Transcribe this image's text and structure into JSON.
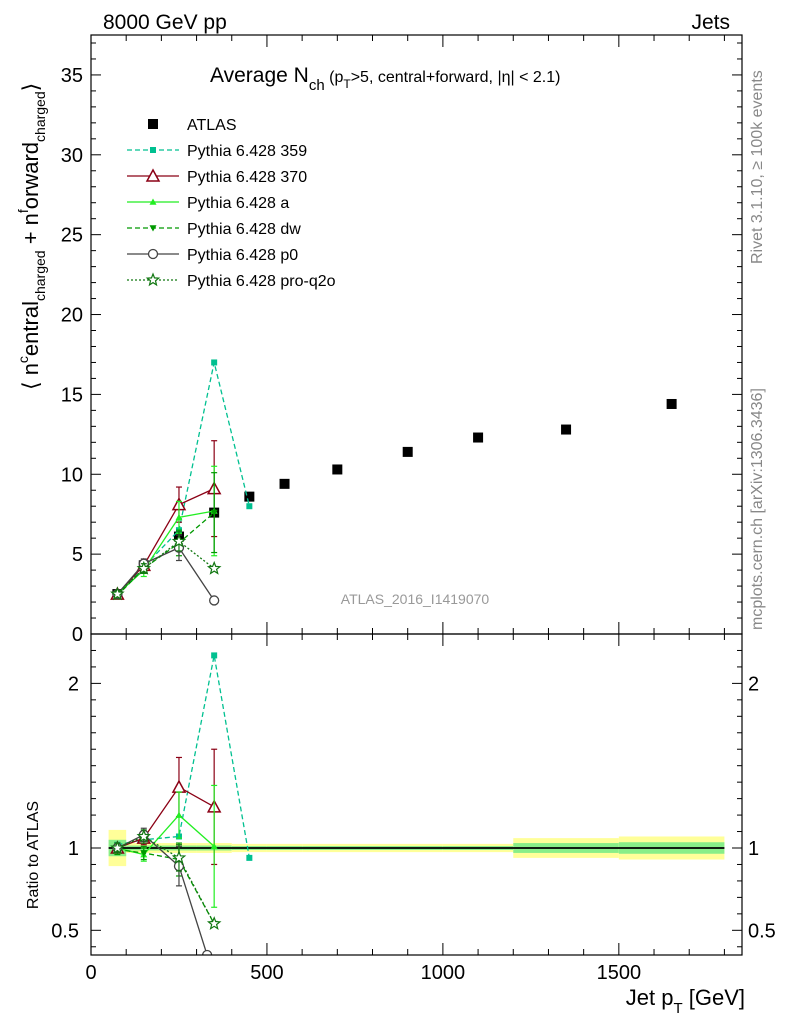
{
  "header": {
    "left": "8000 GeV pp",
    "right": "Jets",
    "right_vertical": "Rivet 3.1.10, ≥ 100k events",
    "source_vertical": "mcplots.cern.ch [arXiv:1306.3436]"
  },
  "plot_title": {
    "main": "Average N",
    "sub": "ch",
    "rest": " (p",
    "rest_sub": "T",
    "rest2": ">5, central+forward, |η| < 2.1)"
  },
  "watermark": "ATLAS_2016_I1419070",
  "upper_ylabel": "⟨ nᶜcentral_charged + nforward_charged ⟩",
  "upper_ylabel_parts": {
    "a": "⟨ n",
    "a_sup": "c",
    "b": "entral",
    "b_sub": "charged",
    "c": " + n",
    "c_sup": "f",
    "d": "orward",
    "d_sub": "charged",
    "e": "⟩"
  },
  "lower_ylabel": "Ratio to ATLAS",
  "xlabel": "Jet p",
  "xlabel_sub": "T",
  "xlabel_rest": " [GeV]",
  "chart_data": [
    {
      "type": "scatter",
      "panel": "main",
      "xlim": [
        0,
        1850
      ],
      "ylim": [
        0,
        37.5
      ],
      "x_ticks": [
        0,
        500,
        1000,
        1500
      ],
      "y_ticks": [
        0,
        5,
        10,
        15,
        20,
        25,
        30,
        35
      ],
      "y_tick_labels": [
        "0",
        "5",
        "10",
        "15",
        "20",
        "25",
        "30",
        "35"
      ],
      "legend_placement": "top-left",
      "series": [
        {
          "name": "ATLAS",
          "color": "#000000",
          "marker": "square",
          "line": "none",
          "x": [
            75,
            150,
            250,
            350,
            450,
            550,
            700,
            900,
            1100,
            1350,
            1650
          ],
          "y": [
            2.5,
            4.3,
            6.1,
            7.6,
            8.6,
            9.4,
            10.3,
            11.4,
            12.3,
            12.8,
            14.4
          ]
        },
        {
          "name": "Pythia 6.428 359",
          "color": "#00c090",
          "marker": "small-square",
          "line": "dashed",
          "x": [
            75,
            150,
            250,
            350,
            450
          ],
          "y": [
            2.5,
            4.2,
            6.5,
            17.0,
            8.0
          ]
        },
        {
          "name": "Pythia 6.428 370",
          "color": "#8b0015",
          "marker": "open-triangle",
          "line": "solid",
          "x": [
            75,
            150,
            250,
            350
          ],
          "y": [
            2.5,
            4.3,
            8.1,
            9.1
          ],
          "err": [
            0.2,
            0.3,
            1.1,
            3.0
          ]
        },
        {
          "name": "Pythia 6.428 a",
          "color": "#22ee22",
          "marker": "triangle",
          "line": "solid",
          "x": [
            75,
            150,
            250,
            350
          ],
          "y": [
            2.5,
            4.0,
            7.3,
            7.7
          ],
          "err": [
            0.2,
            0.4,
            1.0,
            2.8
          ]
        },
        {
          "name": "Pythia 6.428 dw",
          "color": "#009900",
          "marker": "triangle-down",
          "line": "dashed",
          "x": [
            75,
            150,
            250,
            350
          ],
          "y": [
            2.4,
            4.1,
            5.7,
            7.6
          ],
          "err": [
            0.2,
            0.3,
            0.8,
            2.5
          ]
        },
        {
          "name": "Pythia 6.428 p0",
          "color": "#444444",
          "marker": "open-circle",
          "line": "solid",
          "x": [
            75,
            150,
            250,
            350
          ],
          "y": [
            2.5,
            4.4,
            5.4,
            2.1
          ],
          "err": [
            0.2,
            0.3,
            0.8,
            0.0
          ]
        },
        {
          "name": "Pythia 6.428 pro-q2o",
          "color": "#117711",
          "marker": "star",
          "line": "dotted",
          "x": [
            75,
            150,
            250,
            350
          ],
          "y": [
            2.5,
            4.1,
            5.8,
            4.1
          ],
          "err": [
            0.2,
            0.3,
            0.6,
            0.0
          ]
        }
      ]
    },
    {
      "type": "scatter",
      "panel": "ratio",
      "xlim": [
        0,
        1850
      ],
      "ylim": [
        0.35,
        2.3
      ],
      "y_ticks": [
        0.5,
        1,
        2
      ],
      "y_tick_labels": [
        "0.5",
        "1",
        "2"
      ],
      "x_tick_labels": [
        "0",
        "500",
        "1000",
        "1500"
      ],
      "band_bins": [
        {
          "x0": 50,
          "x1": 100,
          "outer": 0.11,
          "inner": 0.05
        },
        {
          "x0": 100,
          "x1": 200,
          "outer": 0.03,
          "inner": 0.015
        },
        {
          "x0": 200,
          "x1": 300,
          "outer": 0.03,
          "inner": 0.015
        },
        {
          "x0": 300,
          "x1": 400,
          "outer": 0.03,
          "inner": 0.015
        },
        {
          "x0": 400,
          "x1": 500,
          "outer": 0.025,
          "inner": 0.012
        },
        {
          "x0": 500,
          "x1": 600,
          "outer": 0.025,
          "inner": 0.012
        },
        {
          "x0": 600,
          "x1": 800,
          "outer": 0.025,
          "inner": 0.012
        },
        {
          "x0": 800,
          "x1": 1000,
          "outer": 0.025,
          "inner": 0.012
        },
        {
          "x0": 1000,
          "x1": 1200,
          "outer": 0.025,
          "inner": 0.012
        },
        {
          "x0": 1200,
          "x1": 1500,
          "outer": 0.06,
          "inner": 0.03
        },
        {
          "x0": 1500,
          "x1": 1800,
          "outer": 0.07,
          "inner": 0.035
        }
      ],
      "series": [
        {
          "name": "Pythia 6.428 359",
          "x": [
            75,
            150,
            250,
            350,
            450
          ],
          "y": [
            1.02,
            1.05,
            1.07,
            2.17,
            0.94
          ]
        },
        {
          "name": "Pythia 6.428 370",
          "x": [
            75,
            150,
            250,
            350
          ],
          "y": [
            1.0,
            1.06,
            1.37,
            1.25
          ],
          "err": [
            0.03,
            0.04,
            0.18,
            0.35
          ]
        },
        {
          "name": "Pythia 6.428 a",
          "x": [
            75,
            150,
            250,
            350
          ],
          "y": [
            1.0,
            0.96,
            1.2,
            1.01
          ],
          "err": [
            0.03,
            0.04,
            0.14,
            0.37
          ]
        },
        {
          "name": "Pythia 6.428 dw",
          "x": [
            75,
            150,
            250,
            350
          ],
          "y": [
            0.99,
            0.97,
            0.93,
            0.54
          ],
          "err": [
            0.03,
            0.04,
            0.1,
            0.0
          ]
        },
        {
          "name": "Pythia 6.428 p0",
          "x": [
            75,
            150,
            250,
            330
          ],
          "y": [
            1.0,
            1.08,
            0.89,
            0.35
          ],
          "err": [
            0.03,
            0.04,
            0.12,
            0.0
          ]
        },
        {
          "name": "Pythia 6.428 pro-q2o",
          "x": [
            75,
            150,
            250,
            350
          ],
          "y": [
            1.0,
            1.07,
            0.94,
            0.54
          ],
          "err": [
            0.03,
            0.04,
            0.08,
            0.0
          ]
        }
      ]
    }
  ]
}
